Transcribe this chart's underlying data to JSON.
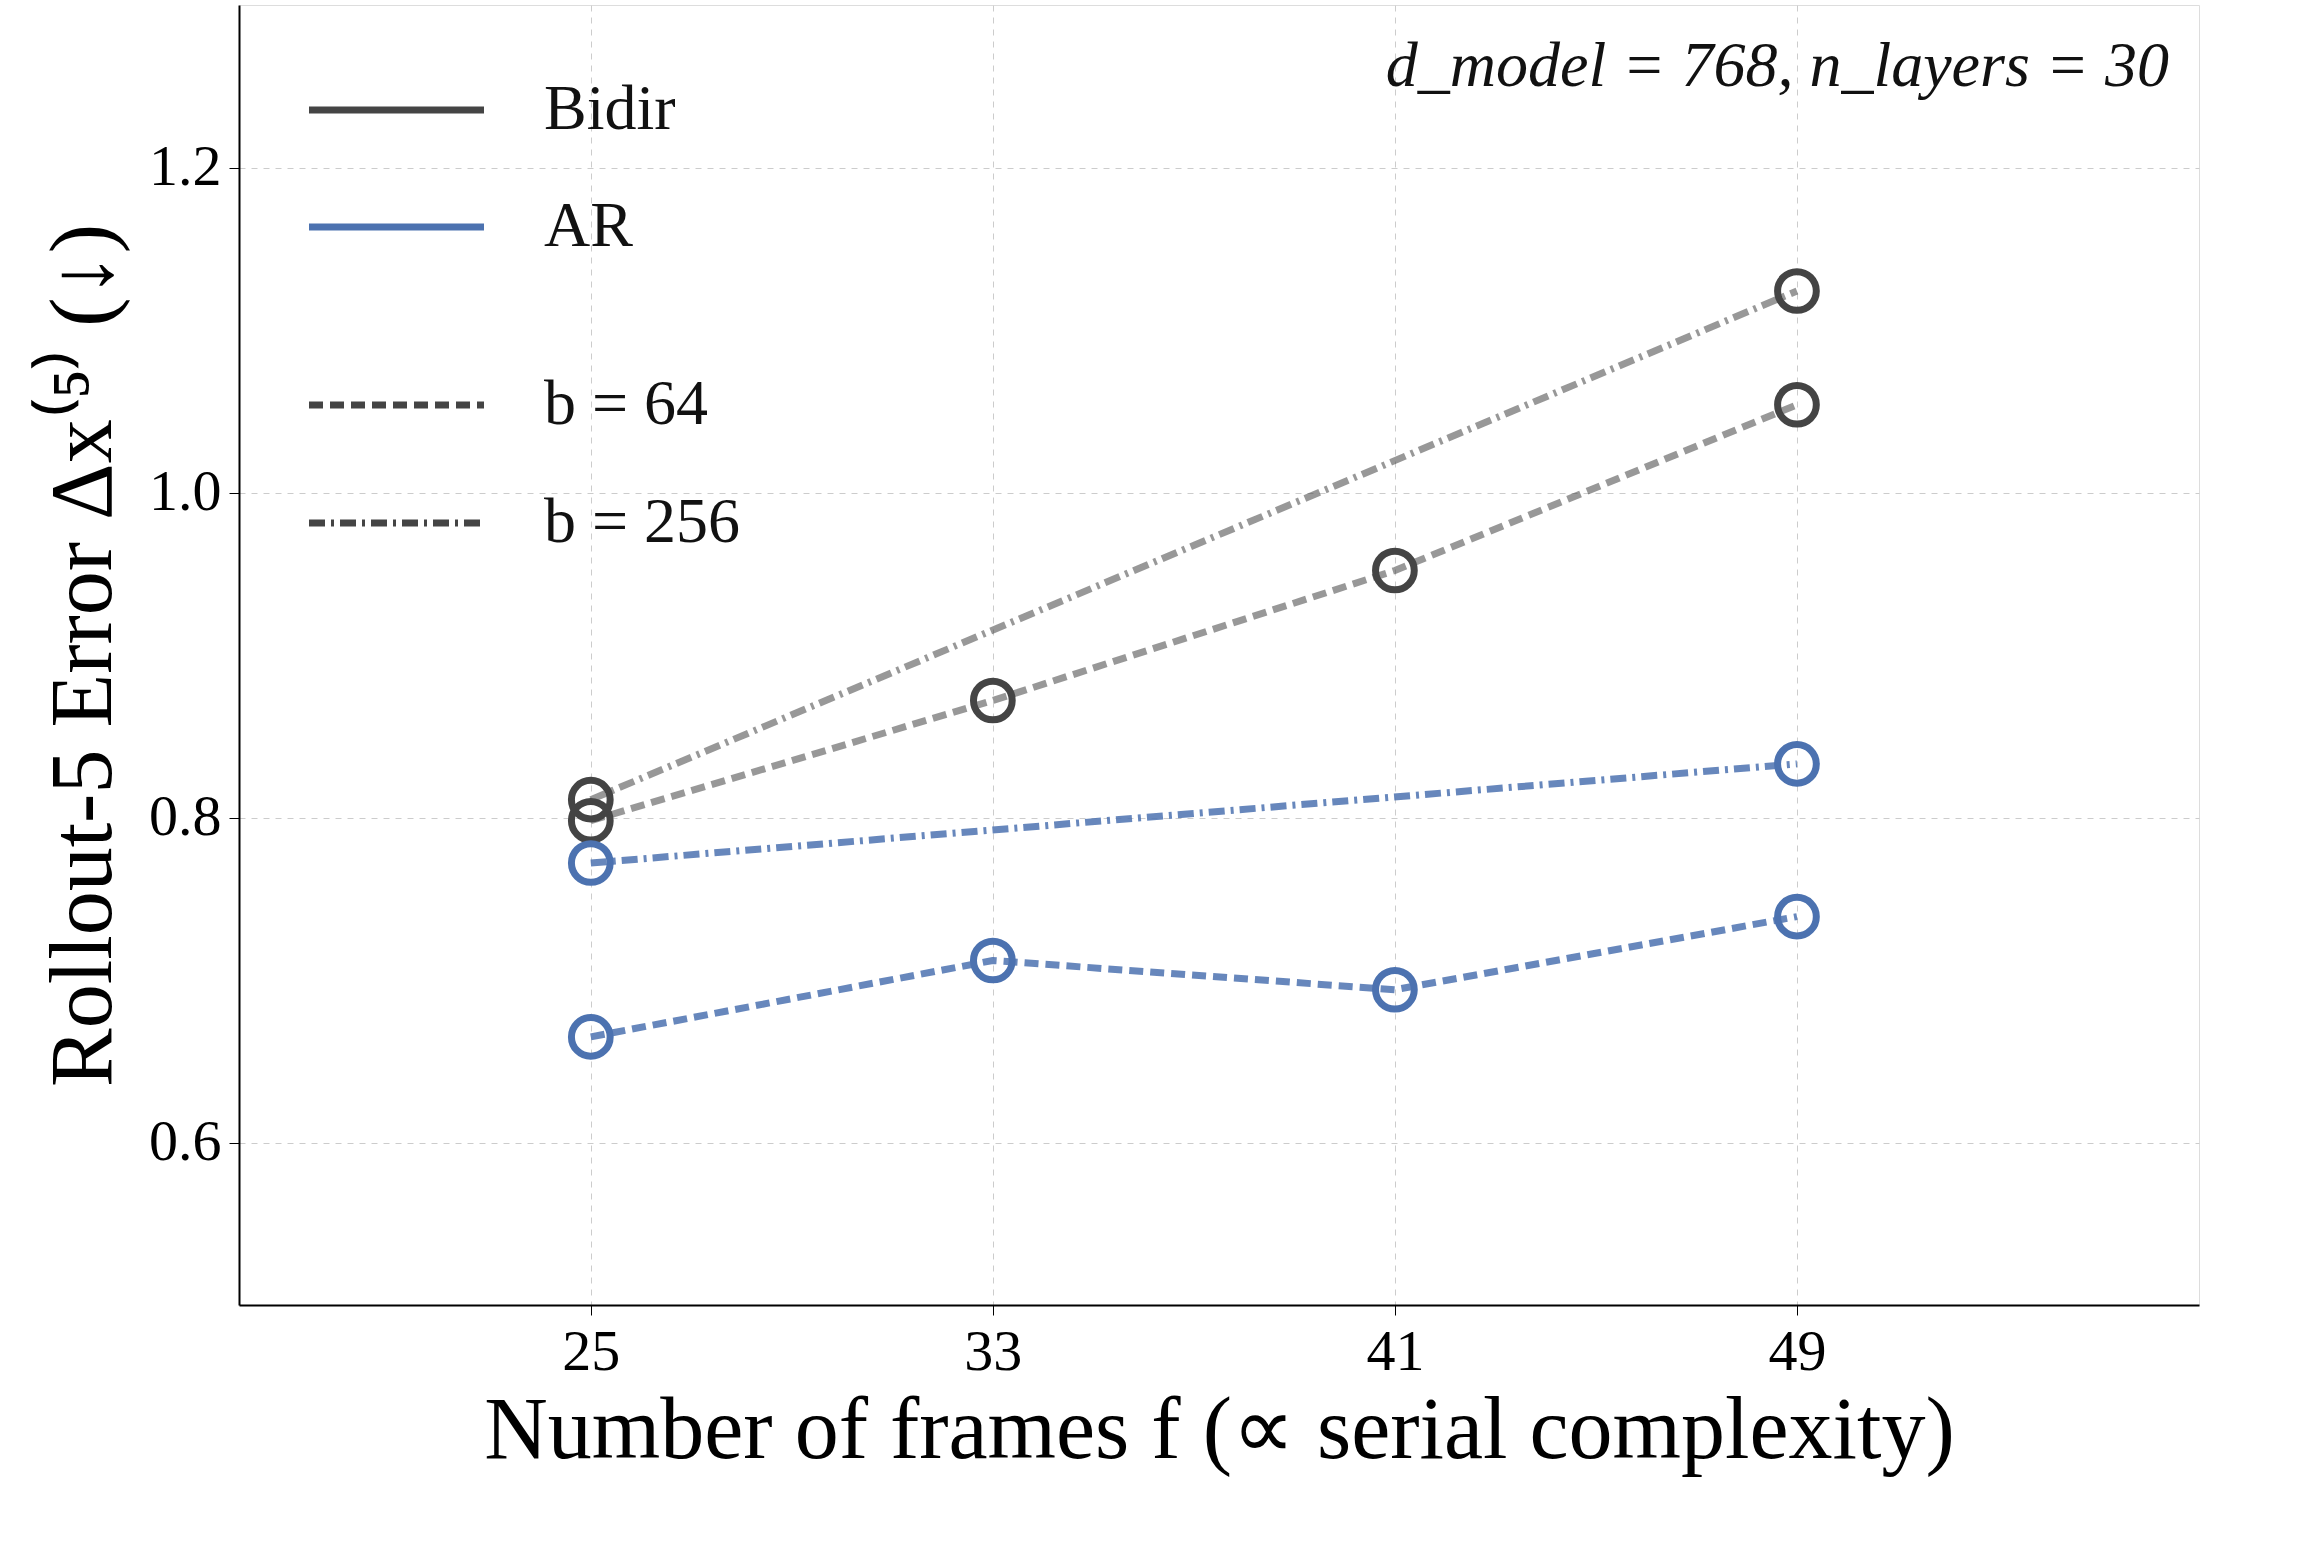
{
  "chart_data": {
    "type": "line",
    "xlabel": "Number of frames f (∝ serial complexity)",
    "ylabel": "Rollout-5 Error Δx⁽⁵⁾ (↓)",
    "xlim": [
      18,
      57
    ],
    "ylim": [
      0.5,
      1.3
    ],
    "xticks": [
      25,
      33,
      41,
      49
    ],
    "yticks": [
      0.6,
      0.8,
      {
        "value": 1,
        "label": "1.0"
      },
      1.2
    ],
    "grid": true,
    "marker": "circle",
    "annotations": [
      "Bidir",
      "AR",
      "b = 64",
      "b = 256",
      "d_model = 768,  n_layers = 30"
    ],
    "series": [
      {
        "color": "#444444",
        "line_style": "dashed",
        "x": [
          25,
          33,
          41,
          49
        ],
        "values": [
          0.798,
          0.872,
          0.952,
          1.054
        ]
      },
      {
        "color": "#444444",
        "line_style": "dashdot",
        "x": [
          25,
          49
        ],
        "values": [
          0.811,
          1.124
        ]
      },
      {
        "color": "#4c72b0",
        "line_style": "dashed",
        "x": [
          25,
          33,
          41,
          49
        ],
        "values": [
          0.665,
          0.712,
          0.694,
          0.739
        ]
      },
      {
        "color": "#4c72b0",
        "line_style": "dashdot",
        "x": [
          25,
          49
        ],
        "values": [
          0.772,
          0.833
        ]
      }
    ]
  }
}
